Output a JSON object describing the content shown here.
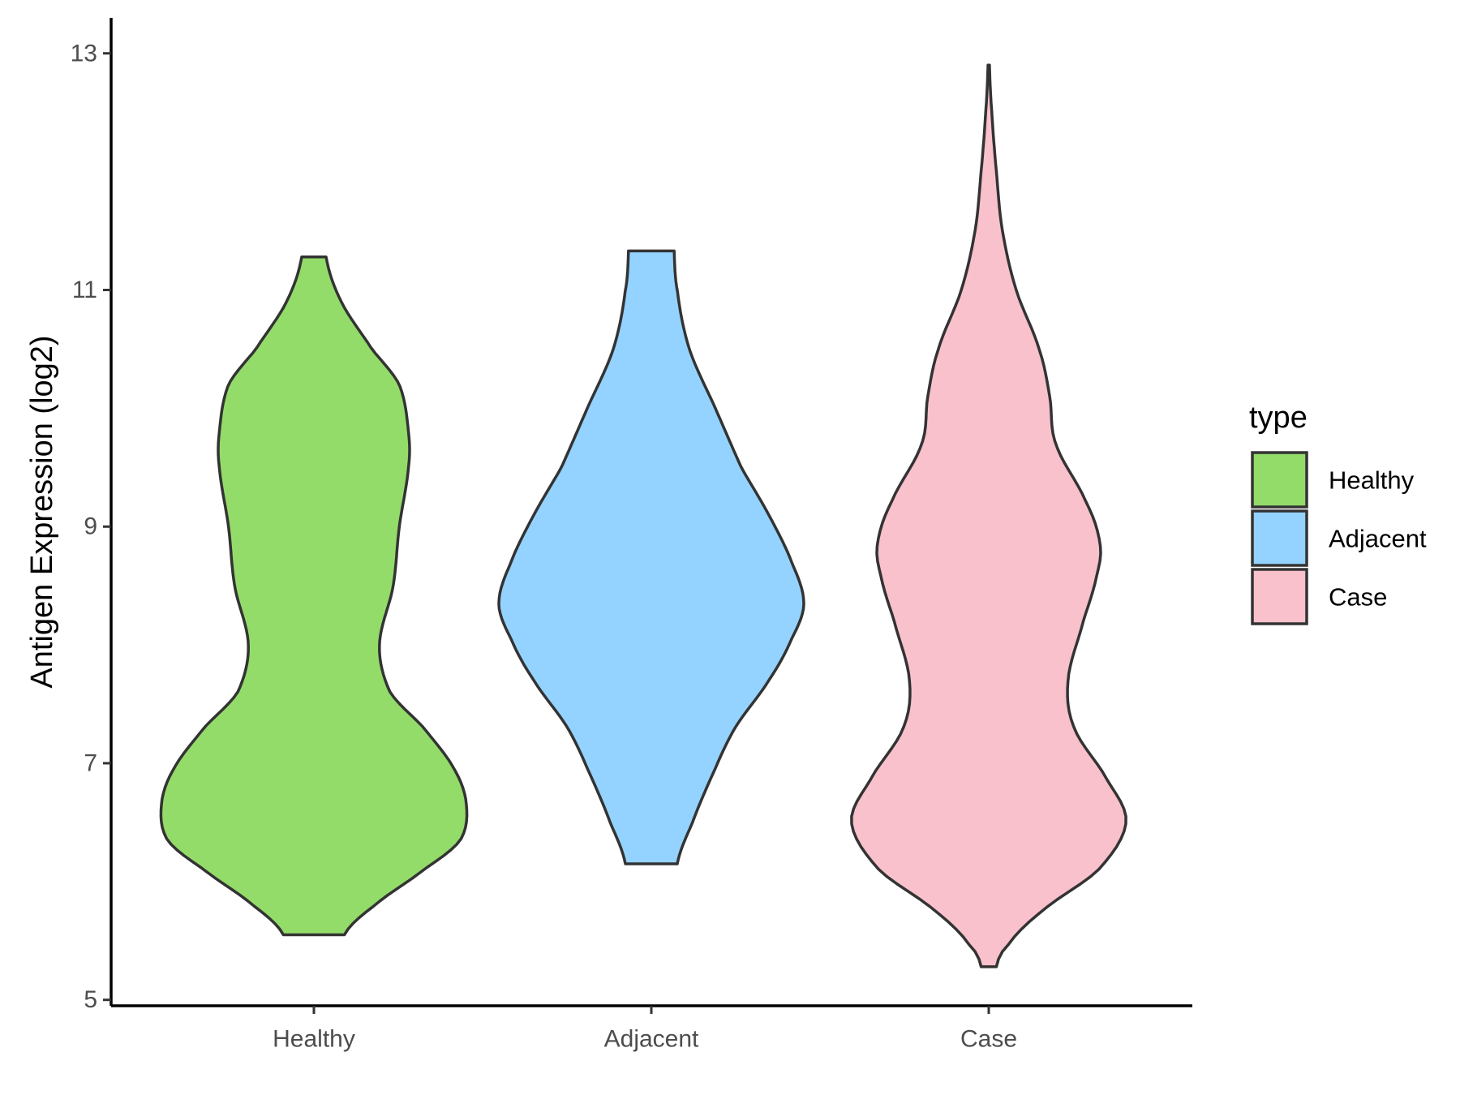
{
  "chart_data": {
    "type": "violin",
    "title": "",
    "xlabel": "",
    "ylabel": "Antigen Expression (log2)",
    "ylim": [
      4.95,
      13.3
    ],
    "yticks": [
      "5",
      "7",
      "9",
      "11",
      "13"
    ],
    "categories": [
      "Healthy",
      "Adjacent",
      "Case"
    ],
    "legend": {
      "title": "type",
      "placement": "right",
      "entries": [
        "Healthy",
        "Adjacent",
        "Case"
      ]
    },
    "colors": {
      "Healthy": "#93DC6A",
      "Adjacent": "#94D3FF",
      "Case": "#F8C1CC"
    },
    "series": [
      {
        "name": "Healthy",
        "min": 5.55,
        "max": 11.28,
        "density": [
          [
            5.55,
            0.2
          ],
          [
            5.8,
            0.4
          ],
          [
            6.1,
            0.72
          ],
          [
            6.35,
            0.96
          ],
          [
            6.65,
            1.0
          ],
          [
            6.95,
            0.92
          ],
          [
            7.3,
            0.72
          ],
          [
            7.6,
            0.5
          ],
          [
            8.0,
            0.43
          ],
          [
            8.5,
            0.52
          ],
          [
            9.0,
            0.56
          ],
          [
            9.5,
            0.62
          ],
          [
            9.8,
            0.62
          ],
          [
            10.2,
            0.56
          ],
          [
            10.5,
            0.38
          ],
          [
            10.9,
            0.18
          ],
          [
            11.28,
            0.08
          ]
        ]
      },
      {
        "name": "Adjacent",
        "min": 6.15,
        "max": 11.33,
        "density": [
          [
            6.15,
            0.17
          ],
          [
            6.5,
            0.27
          ],
          [
            6.9,
            0.4
          ],
          [
            7.3,
            0.55
          ],
          [
            7.7,
            0.77
          ],
          [
            8.05,
            0.92
          ],
          [
            8.35,
            1.0
          ],
          [
            8.7,
            0.92
          ],
          [
            9.1,
            0.77
          ],
          [
            9.5,
            0.59
          ],
          [
            10.0,
            0.42
          ],
          [
            10.5,
            0.25
          ],
          [
            11.0,
            0.17
          ],
          [
            11.33,
            0.15
          ]
        ]
      },
      {
        "name": "Case",
        "min": 5.28,
        "max": 12.9,
        "density": [
          [
            5.28,
            0.05
          ],
          [
            5.45,
            0.12
          ],
          [
            5.75,
            0.35
          ],
          [
            6.1,
            0.72
          ],
          [
            6.5,
            0.9
          ],
          [
            6.85,
            0.78
          ],
          [
            7.3,
            0.56
          ],
          [
            7.7,
            0.52
          ],
          [
            8.2,
            0.62
          ],
          [
            8.6,
            0.71
          ],
          [
            8.85,
            0.73
          ],
          [
            9.2,
            0.64
          ],
          [
            9.7,
            0.44
          ],
          [
            10.1,
            0.4
          ],
          [
            10.5,
            0.33
          ],
          [
            11.0,
            0.18
          ],
          [
            11.5,
            0.09
          ],
          [
            12.0,
            0.05
          ],
          [
            12.5,
            0.02
          ],
          [
            12.9,
            0.005
          ]
        ]
      }
    ]
  }
}
